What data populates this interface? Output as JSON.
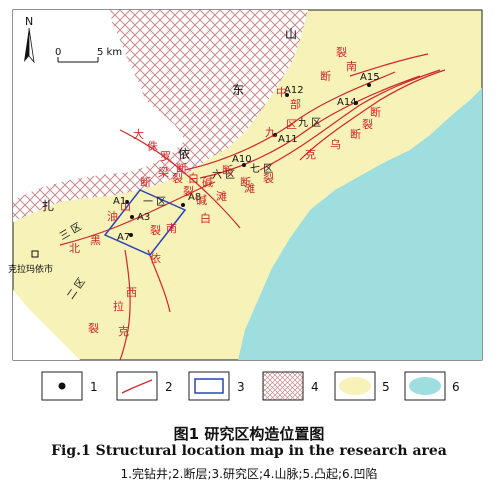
{
  "map": {
    "north": "N",
    "scale_zero": "0",
    "scale_len": "5 km",
    "city": "克拉玛依市",
    "zones": {
      "z1": "一 区",
      "z2": "二 区",
      "z3": "三 区",
      "z6": "六 区",
      "z7": "七 区",
      "z9": "九 区"
    },
    "wells": {
      "a1": "A1",
      "a3": "A3",
      "a7": "A7",
      "a8": "A8",
      "a10": "A10",
      "a11": "A11",
      "a12": "A12",
      "a14": "A14",
      "a15": "A15"
    },
    "mountain_chars": [
      "扎",
      "依",
      "东",
      "山"
    ],
    "fault_chars": [
      "大",
      "侏",
      "罗",
      "梁",
      "断",
      "裂",
      "白",
      "碱",
      "滩",
      "断",
      "裂",
      "中",
      "部",
      "断",
      "裂",
      "南",
      "白",
      "碱",
      "滩",
      "断",
      "裂",
      "北",
      "黑",
      "油",
      "山",
      "断",
      "裂",
      "九",
      "区",
      "克",
      "乌",
      "断",
      "裂",
      "依",
      "拉",
      "克",
      "西",
      "南",
      "断",
      "裂"
    ]
  },
  "legend": {
    "items": [
      {
        "num": "1",
        "symbol": "well"
      },
      {
        "num": "2",
        "symbol": "fault"
      },
      {
        "num": "3",
        "symbol": "study-area"
      },
      {
        "num": "4",
        "symbol": "mountain"
      },
      {
        "num": "5",
        "symbol": "uplift"
      },
      {
        "num": "6",
        "symbol": "depression"
      }
    ],
    "colors": {
      "uplift": "#f6f2b8",
      "depression": "#9fdede",
      "fault": "#d0262a",
      "study": "#2a43b8",
      "mountain": "#c8898b"
    }
  },
  "caption": {
    "cn": "图1  研究区构造位置图",
    "en": "Fig.1  Structural location map in the research area",
    "legend_text": "1.完钻井;2.断层;3.研究区;4.山脉;5.凸起;6.凹陷"
  }
}
